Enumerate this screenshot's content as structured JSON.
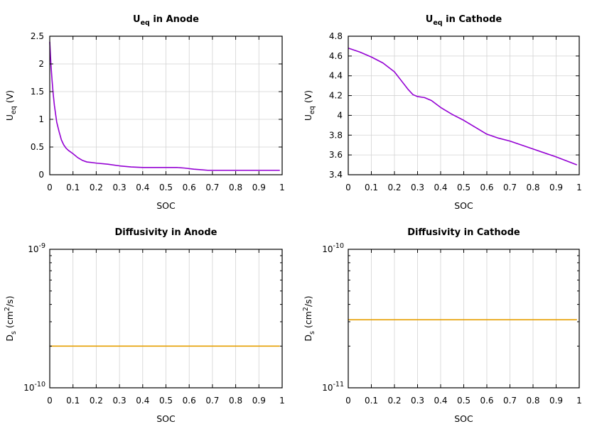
{
  "colors": {
    "uline": "#9400d3",
    "dline": "#e69f00",
    "grid": "#d3d3d3"
  },
  "chart_data": [
    {
      "type": "line",
      "title": "U_eq in Anode",
      "title_main": "U",
      "title_sub": "eq",
      "title_rest": " in Anode",
      "xlabel": "SOC",
      "ylabel_main": "U",
      "ylabel_sub": "eq",
      "ylabel_rest": " (V)",
      "xlim": [
        0,
        1
      ],
      "ylim": [
        0,
        2.5
      ],
      "yscale": "linear",
      "grid": true,
      "xticks": [
        0,
        0.1,
        0.2,
        0.3,
        0.4,
        0.5,
        0.6,
        0.7,
        0.8,
        0.9,
        1
      ],
      "xtick_labels": [
        "0",
        "0.1",
        "0.2",
        "0.3",
        "0.4",
        "0.5",
        "0.6",
        "0.7",
        "0.8",
        "0.9",
        "1"
      ],
      "yticks": [
        0,
        0.5,
        1,
        1.5,
        2,
        2.5
      ],
      "ytick_labels": [
        "0",
        "0.5",
        "1",
        "1.5",
        "2",
        "2.5"
      ],
      "series": [
        {
          "color": "#9400d3",
          "x": [
            0.0,
            0.005,
            0.01,
            0.015,
            0.02,
            0.025,
            0.03,
            0.04,
            0.05,
            0.06,
            0.07,
            0.08,
            0.1,
            0.12,
            0.14,
            0.16,
            0.2,
            0.25,
            0.3,
            0.35,
            0.4,
            0.45,
            0.5,
            0.55,
            0.58,
            0.62,
            0.65,
            0.68,
            0.7,
            0.8,
            0.9,
            0.99
          ],
          "y": [
            2.4,
            2.0,
            1.7,
            1.45,
            1.25,
            1.1,
            0.95,
            0.78,
            0.63,
            0.54,
            0.48,
            0.44,
            0.38,
            0.31,
            0.26,
            0.23,
            0.21,
            0.19,
            0.16,
            0.14,
            0.13,
            0.13,
            0.13,
            0.13,
            0.12,
            0.1,
            0.09,
            0.08,
            0.08,
            0.08,
            0.08,
            0.08
          ]
        }
      ]
    },
    {
      "type": "line",
      "title": "U_eq in Cathode",
      "title_main": "U",
      "title_sub": "eq",
      "title_rest": " in Cathode",
      "xlabel": "SOC",
      "ylabel_main": "U",
      "ylabel_sub": "eq",
      "ylabel_rest": " (V)",
      "xlim": [
        0,
        1
      ],
      "ylim": [
        3.4,
        4.8
      ],
      "yscale": "linear",
      "grid": true,
      "xticks": [
        0,
        0.1,
        0.2,
        0.3,
        0.4,
        0.5,
        0.6,
        0.7,
        0.8,
        0.9,
        1
      ],
      "xtick_labels": [
        "0",
        "0.1",
        "0.2",
        "0.3",
        "0.4",
        "0.5",
        "0.6",
        "0.7",
        "0.8",
        "0.9",
        "1"
      ],
      "yticks": [
        3.4,
        3.6,
        3.8,
        4.0,
        4.2,
        4.4,
        4.6,
        4.8
      ],
      "ytick_labels": [
        "3.4",
        "3.6",
        "3.8",
        "4",
        "4.2",
        "4.4",
        "4.6",
        "4.8"
      ],
      "series": [
        {
          "color": "#9400d3",
          "x": [
            0.0,
            0.05,
            0.1,
            0.15,
            0.2,
            0.23,
            0.26,
            0.28,
            0.3,
            0.33,
            0.36,
            0.4,
            0.45,
            0.5,
            0.55,
            0.6,
            0.65,
            0.7,
            0.8,
            0.9,
            0.99
          ],
          "y": [
            4.68,
            4.64,
            4.59,
            4.53,
            4.44,
            4.35,
            4.26,
            4.21,
            4.19,
            4.18,
            4.15,
            4.08,
            4.01,
            3.95,
            3.88,
            3.81,
            3.77,
            3.74,
            3.66,
            3.58,
            3.5
          ]
        }
      ]
    },
    {
      "type": "line",
      "title": "Diffusivity in Anode",
      "title_main": "Diffusivity in Anode",
      "title_sub": "",
      "title_rest": "",
      "xlabel": "SOC",
      "ylabel_main": "D",
      "ylabel_sub": "s",
      "ylabel_rest": " (cm",
      "ylabel_sup": "2",
      "ylabel_end": "/s)",
      "xlim": [
        0,
        1
      ],
      "ylim": [
        1e-10,
        1e-09
      ],
      "yscale": "log",
      "grid": true,
      "xticks": [
        0,
        0.1,
        0.2,
        0.3,
        0.4,
        0.5,
        0.6,
        0.7,
        0.8,
        0.9,
        1
      ],
      "xtick_labels": [
        "0",
        "0.1",
        "0.2",
        "0.3",
        "0.4",
        "0.5",
        "0.6",
        "0.7",
        "0.8",
        "0.9",
        "1"
      ],
      "ytick_bases": [
        "10",
        "10"
      ],
      "ytick_exps": [
        "-10",
        "-9"
      ],
      "yticks": [
        1e-10,
        1e-09
      ],
      "series": [
        {
          "color": "#e69f00",
          "x": [
            0.0,
            0.99
          ],
          "y": [
            2e-10,
            2e-10
          ]
        }
      ]
    },
    {
      "type": "line",
      "title": "Diffusivity in Cathode",
      "title_main": "Diffusivity in Cathode",
      "title_sub": "",
      "title_rest": "",
      "xlabel": "SOC",
      "ylabel_main": "D",
      "ylabel_sub": "s",
      "ylabel_rest": " (cm",
      "ylabel_sup": "2",
      "ylabel_end": "/s)",
      "xlim": [
        0,
        1
      ],
      "ylim": [
        1e-11,
        1e-10
      ],
      "yscale": "log",
      "grid": true,
      "xticks": [
        0,
        0.1,
        0.2,
        0.3,
        0.4,
        0.5,
        0.6,
        0.7,
        0.8,
        0.9,
        1
      ],
      "xtick_labels": [
        "0",
        "0.1",
        "0.2",
        "0.3",
        "0.4",
        "0.5",
        "0.6",
        "0.7",
        "0.8",
        "0.9",
        "1"
      ],
      "ytick_bases": [
        "10",
        "10"
      ],
      "ytick_exps": [
        "-11",
        "-10"
      ],
      "yticks": [
        1e-11,
        1e-10
      ],
      "series": [
        {
          "color": "#e69f00",
          "x": [
            0.0,
            0.99
          ],
          "y": [
            3.1e-11,
            3.1e-11
          ]
        }
      ]
    }
  ]
}
